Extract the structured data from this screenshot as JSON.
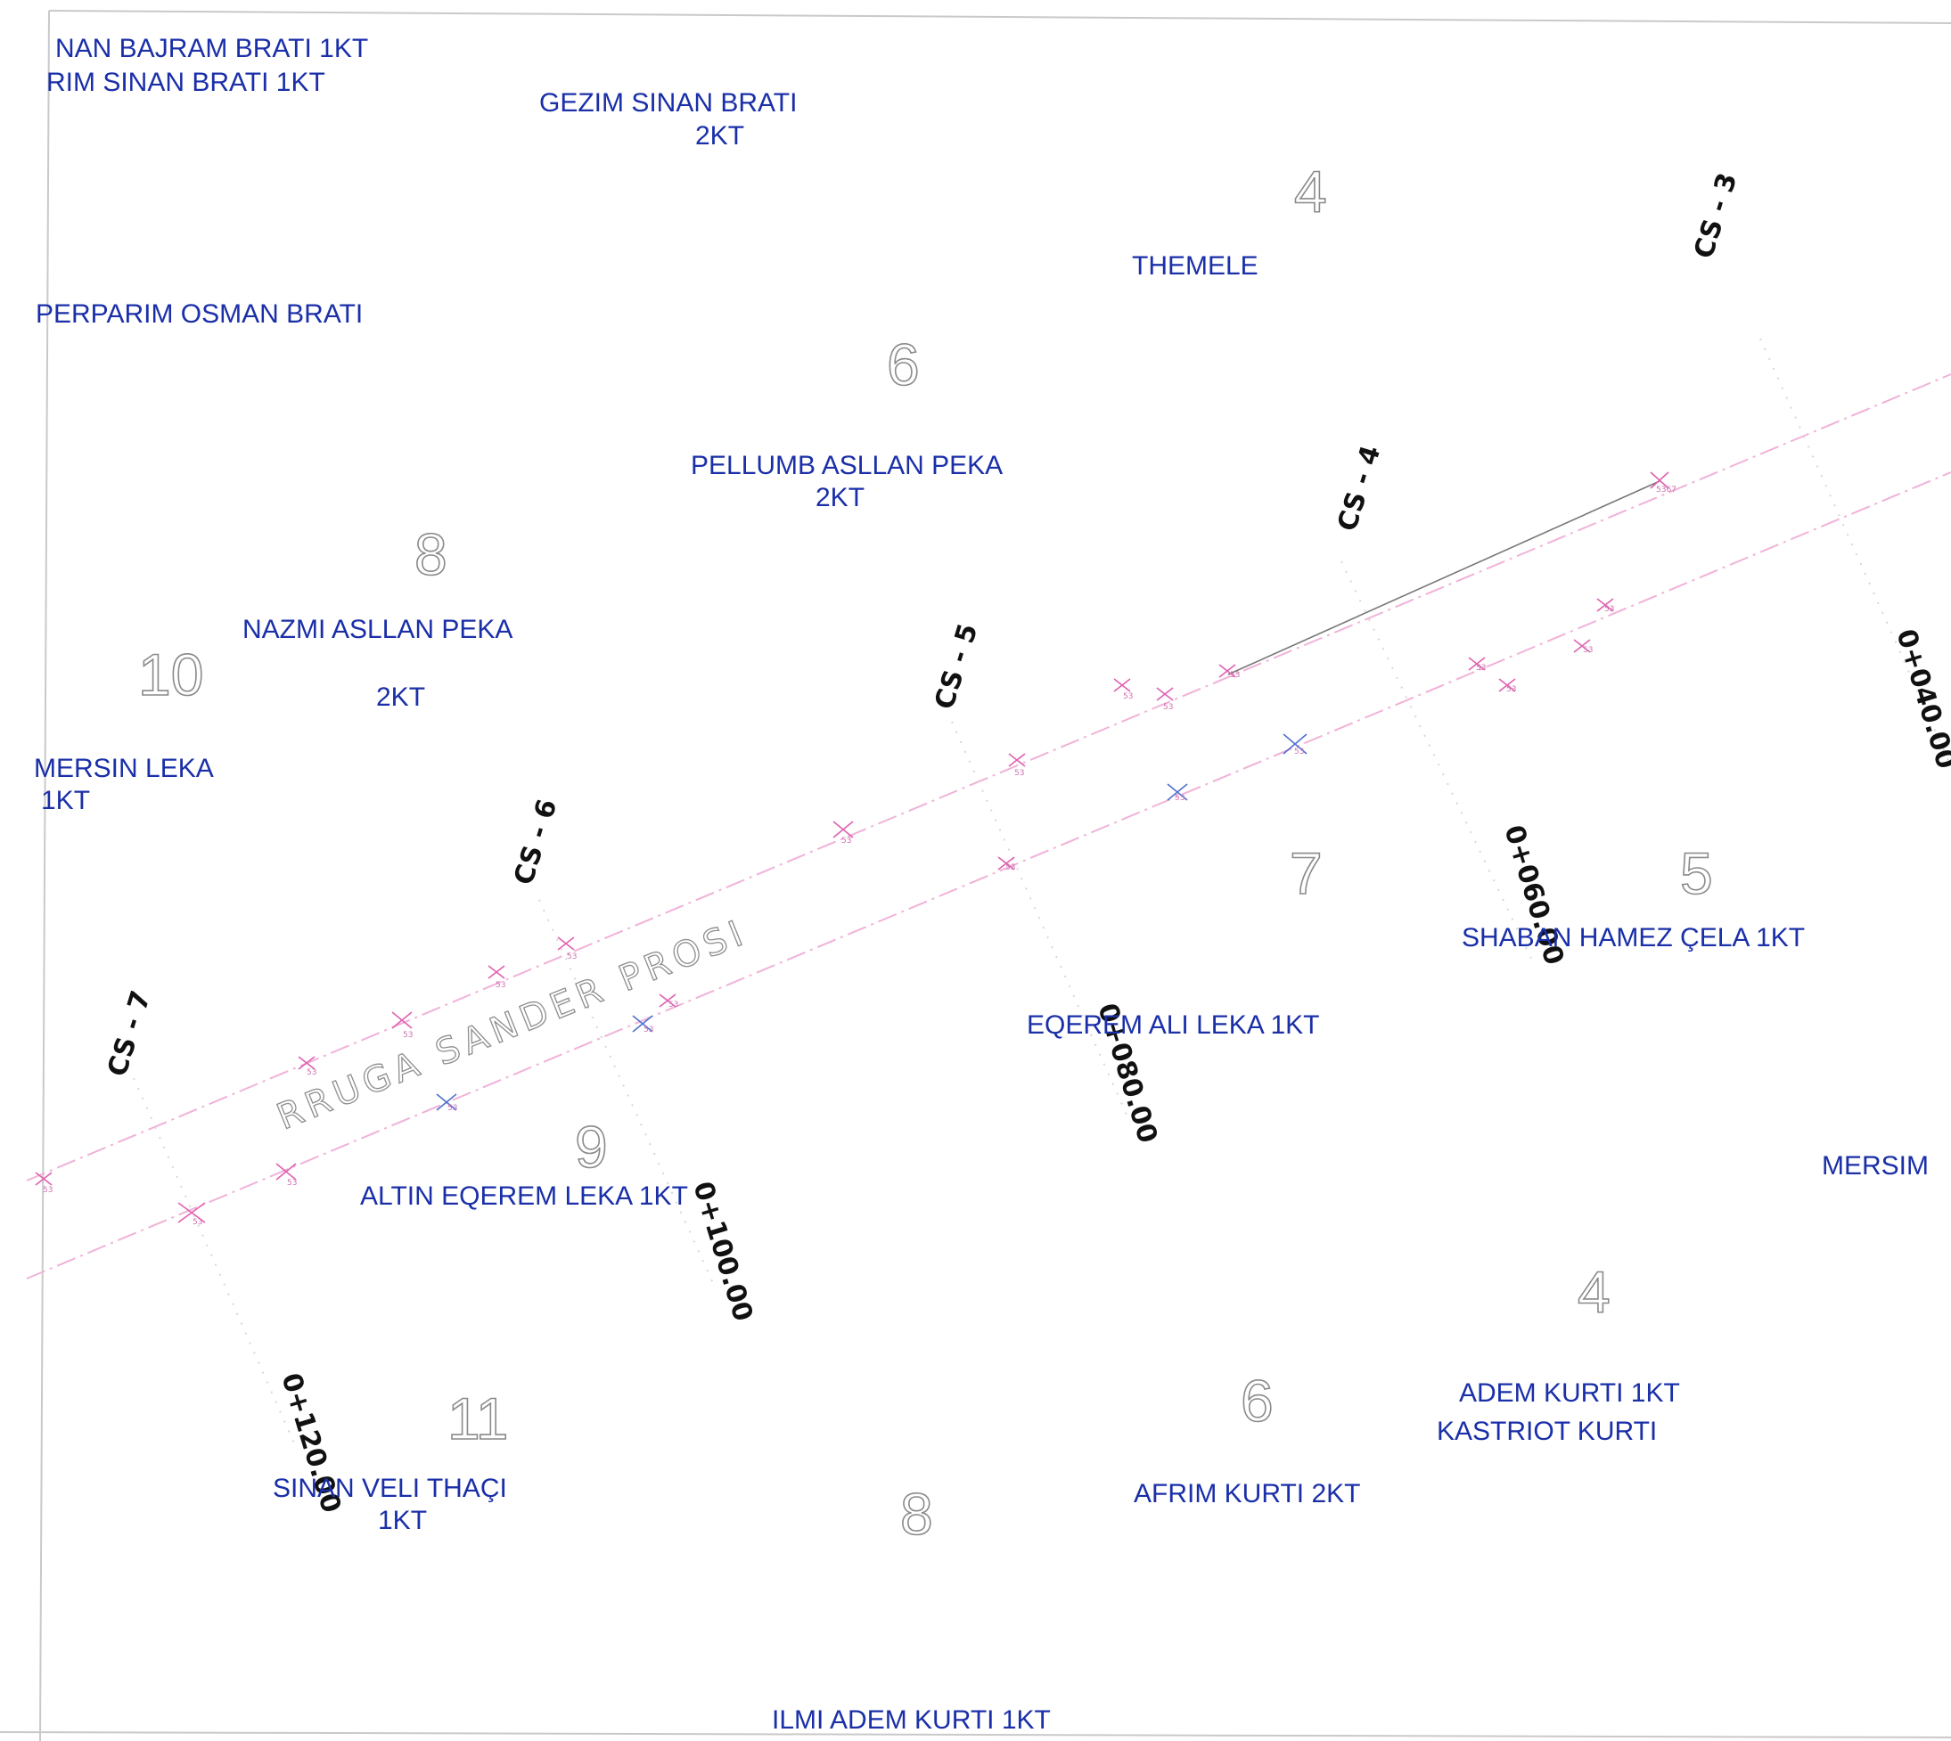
{
  "owners": {
    "o1": "NAN BAJRAM BRATI 1KT",
    "o2": "RIM  SINAN  BRATI   1KT",
    "o3": "GEZIM SINAN  BRATI",
    "o3b": "2KT",
    "o4": "THEMELE",
    "o5": "PERPARIM OSMAN  BRATI",
    "o6": "PELLUMB ASLLAN PEKA",
    "o6b": "2KT",
    "o7": "NAZMI ASLLAN PEKA",
    "o7b": "2KT",
    "o8": "MERSIN LEKA",
    "o8b": "1KT",
    "o9": "SHABAN HAMEZ ÇELA 1KT",
    "o10": "EQEREM  ALI  LEKA 1KT",
    "o11": "MERSIM",
    "o12": "ALTIN  EQEREM   LEKA 1KT",
    "o13": "ADEM  KURTI   1KT",
    "o14": "KASTRIOT  KURTI",
    "o15": "SINAN VELI THAÇI",
    "o15b": "1KT",
    "o16": "AFRIM  KURTI 2KT",
    "o17": "ILMI  ADEM KURTI  1KT"
  },
  "parcels": {
    "p4a": "4",
    "p6a": "6",
    "p8a": "8",
    "p10": "10",
    "p7": "7",
    "p5": "5",
    "p9": "9",
    "p4b": "4",
    "p11": "11",
    "p6b": "6",
    "p8b": "8"
  },
  "cross_sections": [
    "CS - 3",
    "CS - 4",
    "CS - 5",
    "CS - 6",
    "CS - 7"
  ],
  "chainages": [
    "0+040.00",
    "0+060.00",
    "0+080.00",
    "0+100.00",
    "0+120.00"
  ],
  "road_name": "RRUGA   SANDER   PROSI",
  "colors": {
    "owner_text": "#1a2fa8",
    "survey_points": "#e060b0",
    "survey_points_alt": "#5070d0",
    "road_edge": "#f1b2d8"
  }
}
